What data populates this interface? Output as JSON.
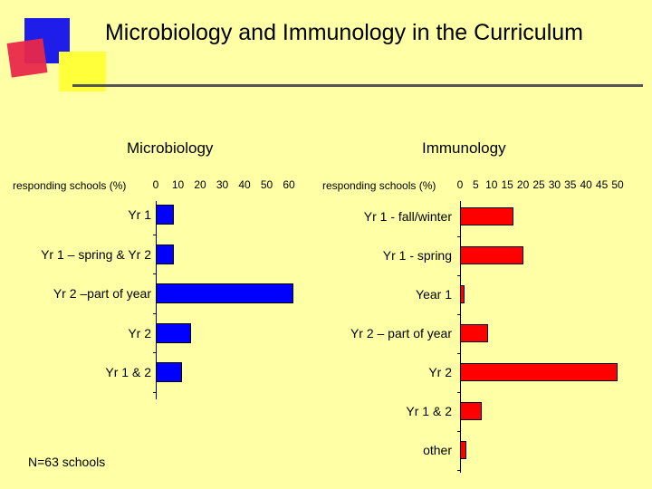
{
  "title": "Microbiology and Immunology in the Curriculum",
  "note": "N=63 schools",
  "colors": {
    "background": "#FFFFA6",
    "microbiology_bar": "#0000FF",
    "immunology_bar": "#FF0000"
  },
  "chart_data": [
    {
      "type": "bar",
      "orientation": "horizontal",
      "title": "Microbiology",
      "xlabel": "responding schools (%)",
      "xlim": [
        0,
        60
      ],
      "xticks": [
        "0",
        "10",
        "20",
        "30",
        "40",
        "50",
        "60"
      ],
      "categories": [
        "Yr 1",
        "Yr 1 – spring & Yr 2",
        "Yr 2 –part of year",
        "Yr 2",
        "Yr 1 & 2"
      ],
      "values": [
        8,
        8,
        62,
        16,
        12
      ]
    },
    {
      "type": "bar",
      "orientation": "horizontal",
      "title": "Immunology",
      "xlabel": "responding schools (%)",
      "xlim": [
        0,
        50
      ],
      "xticks": [
        "0",
        "5",
        "10",
        "15",
        "20",
        "25",
        "30",
        "35",
        "40",
        "45",
        "50"
      ],
      "categories": [
        "Yr 1 - fall/winter",
        "Yr 1 - spring",
        "Year 1",
        "Yr 2 – part of year",
        "Yr 2",
        "Yr 1 & 2",
        "other"
      ],
      "values": [
        17,
        20,
        1.5,
        9,
        50,
        7,
        2
      ]
    }
  ]
}
